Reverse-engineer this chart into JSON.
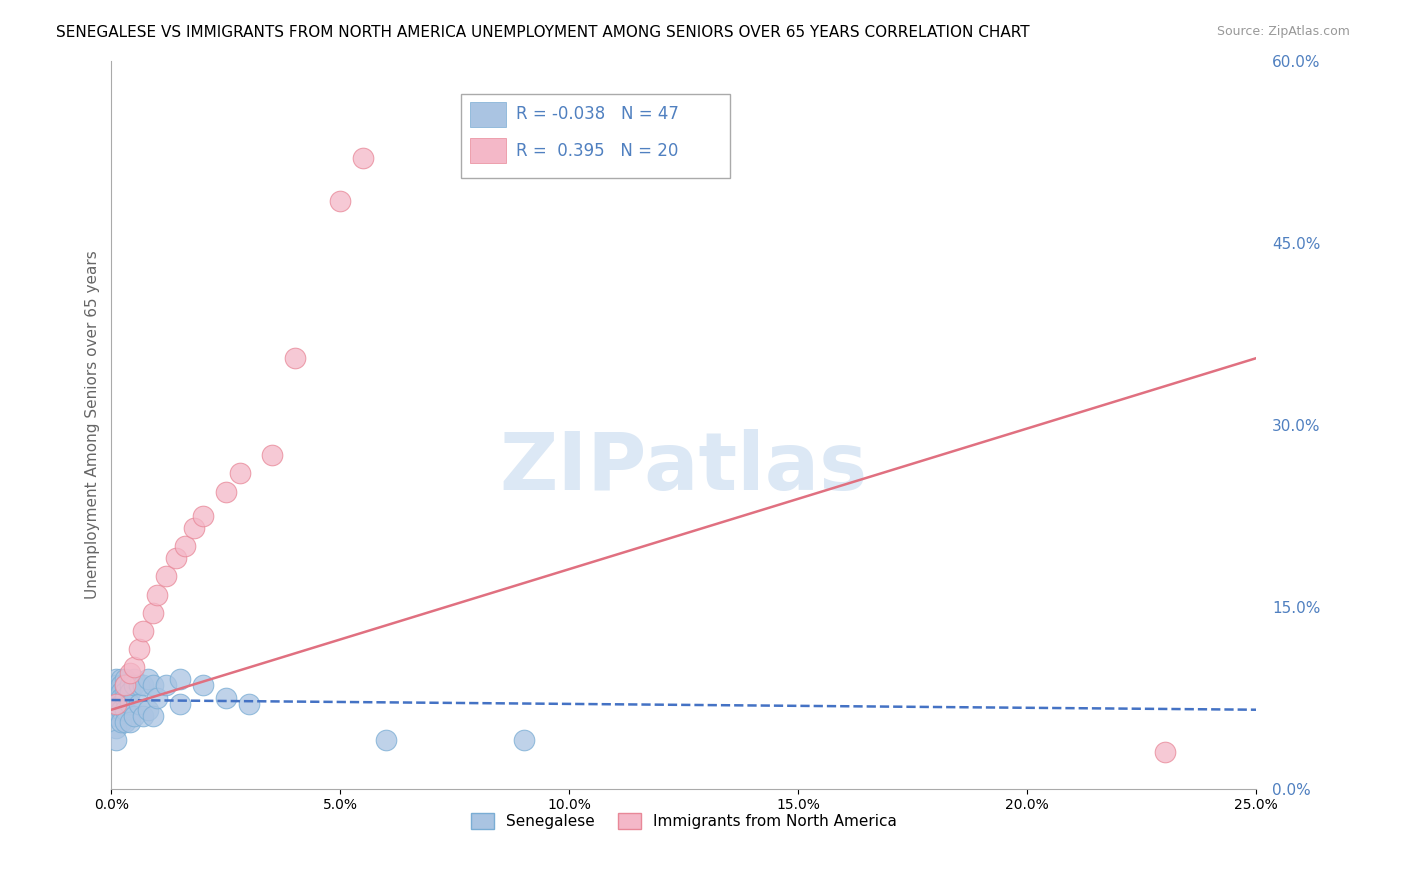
{
  "title": "SENEGALESE VS IMMIGRANTS FROM NORTH AMERICA UNEMPLOYMENT AMONG SENIORS OVER 65 YEARS CORRELATION CHART",
  "source": "Source: ZipAtlas.com",
  "ylabel": "Unemployment Among Seniors over 65 years",
  "xlim": [
    0.0,
    0.25
  ],
  "ylim": [
    0.0,
    0.6
  ],
  "yticks_right": [
    0.0,
    0.15,
    0.3,
    0.45,
    0.6
  ],
  "ytick_labels_right": [
    "0.0%",
    "15.0%",
    "30.0%",
    "45.0%",
    "60.0%"
  ],
  "xticks": [
    0.0,
    0.05,
    0.1,
    0.15,
    0.2,
    0.25
  ],
  "xtick_labels": [
    "0.0%",
    "5.0%",
    "10.0%",
    "15.0%",
    "20.0%",
    "25.0%"
  ],
  "series1_name": "Senegalese",
  "series1_color": "#aac4e2",
  "series1_edge_color": "#7aadd4",
  "series1_R": -0.038,
  "series1_N": 47,
  "series1_line_color": "#4472c4",
  "series2_name": "Immigrants from North America",
  "series2_color": "#f4b8c8",
  "series2_edge_color": "#e88898",
  "series2_R": 0.395,
  "series2_N": 20,
  "series2_line_color": "#e07080",
  "watermark": "ZIPatlas",
  "watermark_color": "#dce8f5",
  "background_color": "#ffffff",
  "grid_color": "#c8c8c8",
  "right_axis_color": "#5080c0",
  "title_fontsize": 11,
  "senegalese_x": [
    0.001,
    0.001,
    0.001,
    0.001,
    0.001,
    0.001,
    0.001,
    0.001,
    0.001,
    0.001,
    0.002,
    0.002,
    0.002,
    0.002,
    0.002,
    0.002,
    0.002,
    0.003,
    0.003,
    0.003,
    0.003,
    0.003,
    0.003,
    0.004,
    0.004,
    0.004,
    0.004,
    0.005,
    0.005,
    0.005,
    0.006,
    0.006,
    0.007,
    0.007,
    0.008,
    0.008,
    0.009,
    0.009,
    0.01,
    0.012,
    0.015,
    0.015,
    0.02,
    0.025,
    0.03,
    0.06,
    0.09
  ],
  "senegalese_y": [
    0.09,
    0.085,
    0.08,
    0.075,
    0.075,
    0.07,
    0.065,
    0.06,
    0.05,
    0.04,
    0.09,
    0.085,
    0.08,
    0.075,
    0.07,
    0.065,
    0.055,
    0.09,
    0.085,
    0.08,
    0.075,
    0.065,
    0.055,
    0.085,
    0.08,
    0.07,
    0.055,
    0.09,
    0.085,
    0.06,
    0.085,
    0.07,
    0.085,
    0.06,
    0.09,
    0.065,
    0.085,
    0.06,
    0.075,
    0.085,
    0.09,
    0.07,
    0.085,
    0.075,
    0.07,
    0.04,
    0.04
  ],
  "immigrants_x": [
    0.001,
    0.003,
    0.004,
    0.005,
    0.006,
    0.007,
    0.009,
    0.01,
    0.012,
    0.014,
    0.016,
    0.018,
    0.02,
    0.025,
    0.028,
    0.035,
    0.04,
    0.05,
    0.055,
    0.23
  ],
  "immigrants_y": [
    0.07,
    0.085,
    0.095,
    0.1,
    0.115,
    0.13,
    0.145,
    0.16,
    0.175,
    0.19,
    0.2,
    0.215,
    0.225,
    0.245,
    0.26,
    0.275,
    0.355,
    0.485,
    0.52,
    0.03
  ],
  "sen_line_x": [
    0.0,
    0.25
  ],
  "sen_line_y": [
    0.073,
    0.065
  ],
  "imm_line_x": [
    0.0,
    0.25
  ],
  "imm_line_y": [
    0.065,
    0.355
  ]
}
